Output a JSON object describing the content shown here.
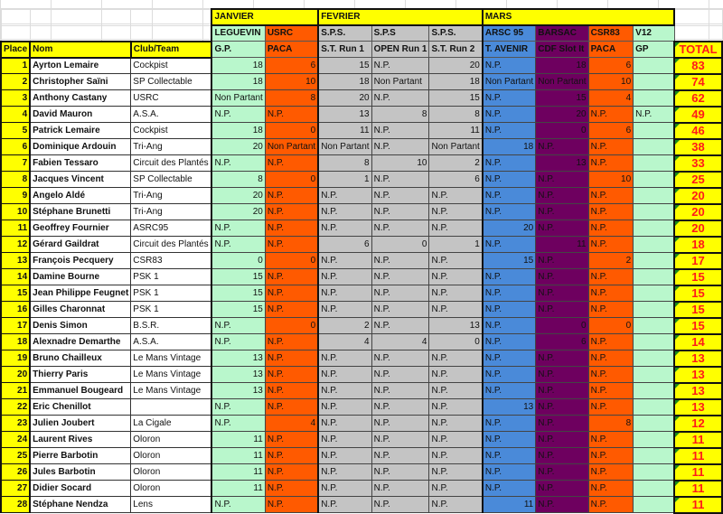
{
  "colors": {
    "green": "#b9f7cc",
    "orange": "#ff5a00",
    "grey": "#c4c4c4",
    "blue": "#4a8ad9",
    "purple": "#6e005f",
    "yellow": "#ffff00",
    "total_text": "#ff1a1a"
  },
  "months": [
    {
      "label": "JANVIER",
      "span": 2
    },
    {
      "label": "FEVRIER",
      "span": 3
    },
    {
      "label": "MARS",
      "span": 4
    }
  ],
  "headers": {
    "place": "Place",
    "nom": "Nom",
    "club": "Club/Team",
    "total": "TOTAL"
  },
  "columns": [
    {
      "venue": "LEGUEVIN",
      "event": "G.P.",
      "color": "green"
    },
    {
      "venue": "USRC",
      "event": "PACA",
      "color": "orange"
    },
    {
      "venue": "S.P.S.",
      "event": "S.T. Run 1",
      "color": "grey"
    },
    {
      "venue": "S.P.S",
      "event": "OPEN Run 1",
      "color": "grey"
    },
    {
      "venue": "S.P.S.",
      "event": "S.T. Run 2",
      "color": "grey"
    },
    {
      "venue": "ARSC 95",
      "event": "T. AVENIR",
      "color": "blue"
    },
    {
      "venue": "BARSAC",
      "event": "CDF Slot It",
      "color": "purple"
    },
    {
      "venue": "CSR83",
      "event": "PACA",
      "color": "orange"
    },
    {
      "venue": "V12",
      "event": "GP",
      "color": "green"
    }
  ],
  "rows": [
    {
      "place": "1",
      "nom": "Ayrton Lemaire",
      "club": "Cockpist",
      "scores": [
        "18",
        "6",
        "15",
        "N.P.",
        "20",
        "N.P.",
        "18",
        "6",
        ""
      ],
      "total": "83"
    },
    {
      "place": "2",
      "nom": "Christopher Saïni",
      "club": "SP Collectable",
      "scores": [
        "18",
        "10",
        "18",
        "Non Partant",
        "18",
        "Non Partant",
        "Non Partant",
        "10",
        ""
      ],
      "total": "74"
    },
    {
      "place": "3",
      "nom": "Anthony Castany",
      "club": "USRC",
      "scores": [
        "Non Partant",
        "8",
        "20",
        "N.P.",
        "15",
        "N.P.",
        "15",
        "4",
        ""
      ],
      "total": "62"
    },
    {
      "place": "4",
      "nom": "David Mauron",
      "club": "A.S.A.",
      "scores": [
        "N.P.",
        "N.P.",
        "13",
        "8",
        "8",
        "N.P.",
        "20",
        "N.P.",
        "N.P."
      ],
      "total": "49"
    },
    {
      "place": "5",
      "nom": "Patrick Lemaire",
      "club": "Cockpist",
      "scores": [
        "18",
        "0",
        "11",
        "N.P.",
        "11",
        "N.P.",
        "0",
        "6",
        ""
      ],
      "total": "46"
    },
    {
      "place": "6",
      "nom": "Dominique Ardouin",
      "club": "Tri-Ang",
      "scores": [
        "20",
        "Non Partant",
        "Non Partant",
        "N.P.",
        "Non Partant",
        "18",
        "N.P.",
        "N.P.",
        ""
      ],
      "total": "38"
    },
    {
      "place": "7",
      "nom": "Fabien Tessaro",
      "club": "Circuit des Plantés",
      "scores": [
        "N.P.",
        "N.P.",
        "8",
        "10",
        "2",
        "N.P.",
        "13",
        "N.P.",
        ""
      ],
      "total": "33"
    },
    {
      "place": "8",
      "nom": "Jacques Vincent",
      "club": "SP Collectable",
      "scores": [
        "8",
        "0",
        "1",
        "N.P.",
        "6",
        "N.P.",
        "N.P.",
        "10",
        ""
      ],
      "total": "25"
    },
    {
      "place": "9",
      "nom": "Angelo Aldé",
      "club": "Tri-Ang",
      "scores": [
        "20",
        "N.P.",
        "N.P.",
        "N.P.",
        "N.P.",
        "N.P.",
        "N.P.",
        "N.P.",
        ""
      ],
      "total": "20"
    },
    {
      "place": "10",
      "nom": "Stéphane Brunetti",
      "club": "Tri-Ang",
      "scores": [
        "20",
        "N.P.",
        "N.P.",
        "N.P.",
        "N.P.",
        "N.P.",
        "N.P.",
        "N.P.",
        ""
      ],
      "total": "20"
    },
    {
      "place": "11",
      "nom": "Geoffrey Fournier",
      "club": "ASRC95",
      "scores": [
        "N.P.",
        "N.P.",
        "N.P.",
        "N.P.",
        "N.P.",
        "20",
        "N.P.",
        "N.P.",
        ""
      ],
      "total": "20"
    },
    {
      "place": "12",
      "nom": "Gérard Gaildrat",
      "club": "Circuit des Plantés",
      "scores": [
        "N.P.",
        "N.P.",
        "6",
        "0",
        "1",
        "N.P.",
        "11",
        "N.P.",
        ""
      ],
      "total": "18"
    },
    {
      "place": "13",
      "nom": "François Pecquery",
      "club": "CSR83",
      "scores": [
        "0",
        "0",
        "N.P.",
        "N.P.",
        "N.P.",
        "15",
        "N.P.",
        "2",
        ""
      ],
      "total": "17"
    },
    {
      "place": "14",
      "nom": "Damine Bourne",
      "club": "PSK 1",
      "scores": [
        "15",
        "N.P.",
        "N.P.",
        "N.P.",
        "N.P.",
        "N.P.",
        "N.P.",
        "N.P.",
        ""
      ],
      "total": "15"
    },
    {
      "place": "15",
      "nom": "Jean Philippe Feugnet",
      "club": "PSK 1",
      "scores": [
        "15",
        "N.P.",
        "N.P.",
        "N.P.",
        "N.P.",
        "N.P.",
        "N.P.",
        "N.P.",
        ""
      ],
      "total": "15"
    },
    {
      "place": "16",
      "nom": "Gilles Charonnat",
      "club": "PSK 1",
      "scores": [
        "15",
        "N.P.",
        "N.P.",
        "N.P.",
        "N.P.",
        "N.P.",
        "N.P.",
        "N.P.",
        ""
      ],
      "total": "15"
    },
    {
      "place": "17",
      "nom": "Denis Simon",
      "club": "B.S.R.",
      "scores": [
        "N.P.",
        "0",
        "2",
        "N.P.",
        "13",
        "N.P.",
        "0",
        "0",
        ""
      ],
      "total": "15"
    },
    {
      "place": "18",
      "nom": "Alexnadre Demarthe",
      "club": "A.S.A.",
      "scores": [
        "N.P.",
        "N.P.",
        "4",
        "4",
        "0",
        "N.P.",
        "6",
        "N.P.",
        ""
      ],
      "total": "14"
    },
    {
      "place": "19",
      "nom": "Bruno Chailleux",
      "club": "Le Mans Vintage",
      "scores": [
        "13",
        "N.P.",
        "N.P.",
        "N.P.",
        "N.P.",
        "N.P.",
        "N.P.",
        "N.P.",
        ""
      ],
      "total": "13"
    },
    {
      "place": "20",
      "nom": "Thierry Paris",
      "club": "Le Mans Vintage",
      "scores": [
        "13",
        "N.P.",
        "N.P.",
        "N.P.",
        "N.P.",
        "N.P.",
        "N.P.",
        "N.P.",
        ""
      ],
      "total": "13"
    },
    {
      "place": "21",
      "nom": "Emmanuel Bougeard",
      "club": "Le Mans Vintage",
      "scores": [
        "13",
        "N.P.",
        "N.P.",
        "N.P.",
        "N.P.",
        "N.P.",
        "N.P.",
        "N.P.",
        ""
      ],
      "total": "13"
    },
    {
      "place": "22",
      "nom": "Eric Chenillot",
      "club": "",
      "scores": [
        "N.P.",
        "N.P.",
        "N.P.",
        "N.P.",
        "N.P.",
        "13",
        "N.P.",
        "N.P.",
        ""
      ],
      "total": "13"
    },
    {
      "place": "23",
      "nom": "Julien Joubert",
      "club": "La Cigale",
      "scores": [
        "N.P.",
        "4",
        "N.P.",
        "N.P.",
        "N.P.",
        "N.P.",
        "N.P.",
        "8",
        ""
      ],
      "total": "12"
    },
    {
      "place": "24",
      "nom": "Laurent Rives",
      "club": "Oloron",
      "scores": [
        "11",
        "N.P.",
        "N.P.",
        "N.P.",
        "N.P.",
        "N.P.",
        "N.P.",
        "N.P.",
        ""
      ],
      "total": "11"
    },
    {
      "place": "25",
      "nom": "Pierre Barbotin",
      "club": "Oloron",
      "scores": [
        "11",
        "N.P.",
        "N.P.",
        "N.P.",
        "N.P.",
        "N.P.",
        "N.P.",
        "N.P.",
        ""
      ],
      "total": "11"
    },
    {
      "place": "26",
      "nom": "Jules Barbotin",
      "club": "Oloron",
      "scores": [
        "11",
        "N.P.",
        "N.P.",
        "N.P.",
        "N.P.",
        "N.P.",
        "N.P.",
        "N.P.",
        ""
      ],
      "total": "11"
    },
    {
      "place": "27",
      "nom": "Didier Socard",
      "club": "Oloron",
      "scores": [
        "11",
        "N.P.",
        "N.P.",
        "N.P.",
        "N.P.",
        "N.P.",
        "N.P.",
        "N.P.",
        ""
      ],
      "total": "11"
    },
    {
      "place": "28",
      "nom": "Stéphane Nendza",
      "club": "Lens",
      "scores": [
        "N.P.",
        "N.P.",
        "N.P.",
        "N.P.",
        "N.P.",
        "11",
        "N.P.",
        "N.P.",
        ""
      ],
      "total": "11"
    }
  ]
}
